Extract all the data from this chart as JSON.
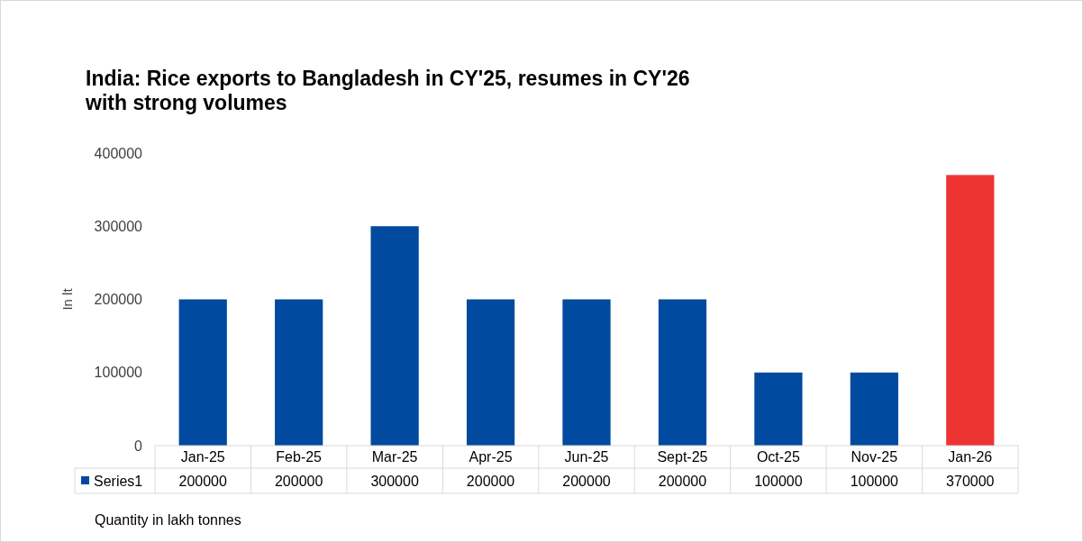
{
  "chart_data": {
    "type": "bar",
    "title": "India: Rice exports to Bangladesh in CY'25, resumes in CY'26\nwith strong volumes",
    "ylabel": "In lt",
    "categories": [
      "Jan-25",
      "Feb-25",
      "Mar-25",
      "Apr-25",
      "Jun-25",
      "Sept-25",
      "Oct-25",
      "Nov-25",
      "Jan-26"
    ],
    "series": [
      {
        "name": "Series1",
        "color": "#004aa0",
        "colors": [
          "#004aa0",
          "#004aa0",
          "#004aa0",
          "#004aa0",
          "#004aa0",
          "#004aa0",
          "#004aa0",
          "#004aa0",
          "#ee3433"
        ],
        "values": [
          200000,
          200000,
          300000,
          200000,
          200000,
          200000,
          100000,
          100000,
          370000
        ]
      }
    ],
    "ylim": [
      0,
      400000
    ],
    "yticks": [
      0,
      100000,
      200000,
      300000,
      400000
    ],
    "grid": false,
    "legend": "bottom",
    "data_labels": true,
    "annotations": [
      "Quantity in lakh tonnes"
    ]
  }
}
